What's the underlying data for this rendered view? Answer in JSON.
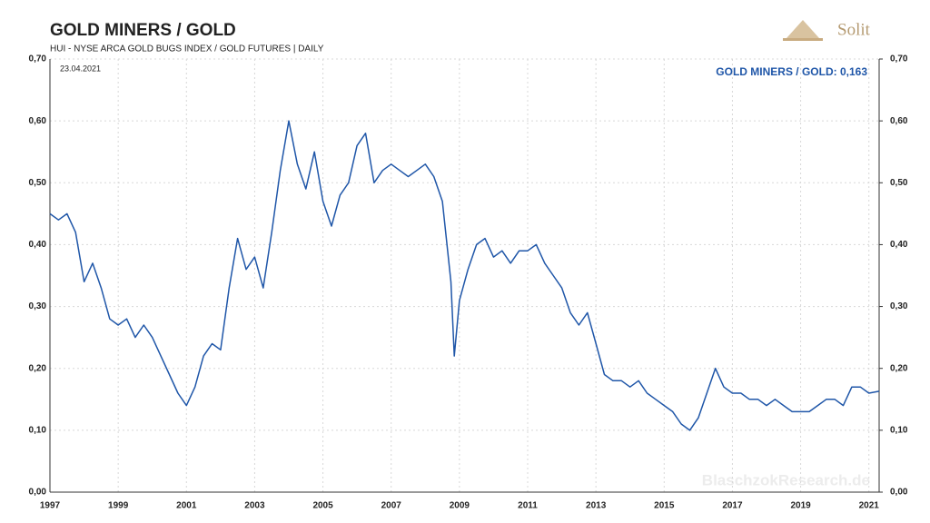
{
  "chart_data": {
    "type": "line",
    "title": "GOLD MINERS / GOLD",
    "subtitle": "HUI - NYSE ARCA GOLD BUGS INDEX / GOLD FUTURES | DAILY",
    "date": "23.04.2021",
    "annotation": "GOLD MINERS / GOLD: 0,163",
    "logo": "Solit",
    "watermark": "BlaschzokResearch.de",
    "x": [
      1997.0,
      1997.25,
      1997.5,
      1997.75,
      1998.0,
      1998.25,
      1998.5,
      1998.75,
      1999.0,
      1999.25,
      1999.5,
      1999.75,
      2000.0,
      2000.25,
      2000.5,
      2000.75,
      2001.0,
      2001.25,
      2001.5,
      2001.75,
      2002.0,
      2002.25,
      2002.5,
      2002.75,
      2003.0,
      2003.25,
      2003.5,
      2003.75,
      2004.0,
      2004.25,
      2004.5,
      2004.75,
      2005.0,
      2005.25,
      2005.5,
      2005.75,
      2006.0,
      2006.25,
      2006.5,
      2006.75,
      2007.0,
      2007.25,
      2007.5,
      2007.75,
      2008.0,
      2008.25,
      2008.5,
      2008.75,
      2008.85,
      2009.0,
      2009.25,
      2009.5,
      2009.75,
      2010.0,
      2010.25,
      2010.5,
      2010.75,
      2011.0,
      2011.25,
      2011.5,
      2011.75,
      2012.0,
      2012.25,
      2012.5,
      2012.75,
      2013.0,
      2013.25,
      2013.5,
      2013.75,
      2014.0,
      2014.25,
      2014.5,
      2014.75,
      2015.0,
      2015.25,
      2015.5,
      2015.75,
      2016.0,
      2016.25,
      2016.5,
      2016.75,
      2017.0,
      2017.25,
      2017.5,
      2017.75,
      2018.0,
      2018.25,
      2018.5,
      2018.75,
      2019.0,
      2019.25,
      2019.5,
      2019.75,
      2020.0,
      2020.25,
      2020.5,
      2020.75,
      2021.0,
      2021.3
    ],
    "series": [
      {
        "name": "GOLD MINERS / GOLD",
        "color": "#1f56a8",
        "values": [
          0.45,
          0.44,
          0.45,
          0.42,
          0.34,
          0.37,
          0.33,
          0.28,
          0.27,
          0.28,
          0.25,
          0.27,
          0.25,
          0.22,
          0.19,
          0.16,
          0.14,
          0.17,
          0.22,
          0.24,
          0.23,
          0.33,
          0.41,
          0.36,
          0.38,
          0.33,
          0.42,
          0.52,
          0.6,
          0.53,
          0.49,
          0.55,
          0.47,
          0.43,
          0.48,
          0.5,
          0.56,
          0.58,
          0.5,
          0.52,
          0.53,
          0.52,
          0.51,
          0.52,
          0.53,
          0.51,
          0.47,
          0.34,
          0.22,
          0.31,
          0.36,
          0.4,
          0.41,
          0.38,
          0.39,
          0.37,
          0.39,
          0.39,
          0.4,
          0.37,
          0.35,
          0.33,
          0.29,
          0.27,
          0.29,
          0.24,
          0.19,
          0.18,
          0.18,
          0.17,
          0.18,
          0.16,
          0.15,
          0.14,
          0.13,
          0.11,
          0.1,
          0.12,
          0.16,
          0.2,
          0.17,
          0.16,
          0.16,
          0.15,
          0.15,
          0.14,
          0.15,
          0.14,
          0.13,
          0.13,
          0.13,
          0.14,
          0.15,
          0.15,
          0.14,
          0.17,
          0.17,
          0.16,
          0.163
        ]
      }
    ],
    "xlim": [
      1997,
      2021.3
    ],
    "xticks": [
      1997,
      1999,
      2001,
      2003,
      2005,
      2007,
      2009,
      2011,
      2013,
      2015,
      2017,
      2019,
      2021
    ],
    "ylim": [
      0,
      0.7
    ],
    "yticks": [
      {
        "value": 0,
        "label": "0,00"
      },
      {
        "value": 0.1,
        "label": "0,10"
      },
      {
        "value": 0.2,
        "label": "0,20"
      },
      {
        "value": 0.3,
        "label": "0,30"
      },
      {
        "value": 0.4,
        "label": "0,40"
      },
      {
        "value": 0.5,
        "label": "0,50"
      },
      {
        "value": 0.6,
        "label": "0,60"
      },
      {
        "value": 0.7,
        "label": "0,70"
      }
    ],
    "y2lim": [
      0,
      0.7
    ],
    "y2ticks": [
      {
        "value": 0,
        "label": "0,00"
      },
      {
        "value": 0.1,
        "label": "0,10"
      },
      {
        "value": 0.2,
        "label": "0,20"
      },
      {
        "value": 0.3,
        "label": "0,30"
      },
      {
        "value": 0.4,
        "label": "0,40"
      },
      {
        "value": 0.5,
        "label": "0,50"
      },
      {
        "value": 0.6,
        "label": "0,60"
      },
      {
        "value": 0.7,
        "label": "0,70"
      }
    ],
    "grid": true
  }
}
